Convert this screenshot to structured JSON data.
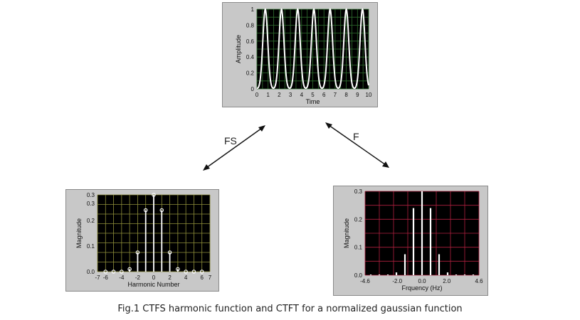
{
  "colors": {
    "panel_bg": "#c8c8c8",
    "plot_bg": "#000000",
    "grid_top": "#2f6e2f",
    "grid_left": "#8f8f3a",
    "grid_right": "#b0203f",
    "trace": "#ffffff"
  },
  "arrows": {
    "left_label": "FS",
    "right_label": "F"
  },
  "caption": "Fig.1 CTFS harmonic function and CTFT for a normalized gaussian function",
  "chart_data": [
    {
      "id": "time",
      "type": "line",
      "title": "",
      "xlabel": "Time",
      "ylabel": "Amplitude",
      "xlim": [
        0,
        10
      ],
      "ylim": [
        0,
        1
      ],
      "xticks": [
        "0",
        "1",
        "2",
        "3",
        "4",
        "5",
        "6",
        "7",
        "8",
        "9",
        "10"
      ],
      "yticks": [
        "0",
        "0.2",
        "0.4",
        "0.6",
        "0.8",
        "1"
      ],
      "grid": true,
      "period": 1.45,
      "peak_offset": 0.75,
      "sigma": 0.22
    },
    {
      "id": "harmonics",
      "type": "stem",
      "title": "",
      "xlabel": "Harmonic Number",
      "ylabel": "Magnitude",
      "xlim": [
        -7,
        7
      ],
      "ylim": [
        0,
        0.3
      ],
      "xticks": [
        "-7",
        "-6",
        "-4",
        "-2",
        "0",
        "2",
        "4",
        "6",
        "7"
      ],
      "yticks": [
        "0.0",
        "0.1",
        "0.2",
        "0.3",
        "0.3"
      ],
      "grid": true,
      "x": [
        -6,
        -5,
        -4,
        -3,
        -2,
        -1,
        0,
        1,
        2,
        3,
        4,
        5,
        6
      ],
      "y": [
        0.0,
        0.0,
        0.0,
        0.01,
        0.075,
        0.24,
        0.3,
        0.24,
        0.075,
        0.01,
        0.0,
        0.0,
        0.0
      ]
    },
    {
      "id": "spectrum",
      "type": "bar",
      "title": "",
      "xlabel": "Frquency (Hz)",
      "ylabel": "Magnitude",
      "xlim": [
        -4.6,
        4.6
      ],
      "ylim": [
        0,
        0.3
      ],
      "xticks": [
        "-4.6",
        "-2.0",
        "0.0",
        "2.0",
        "4.6"
      ],
      "yticks": [
        "0.0",
        "0.1",
        "0.2",
        "0.3"
      ],
      "grid": true,
      "x": [
        -4.14,
        -3.45,
        -2.76,
        -2.07,
        -1.38,
        -0.69,
        0,
        0.69,
        1.38,
        2.07,
        2.76,
        3.45,
        4.14
      ],
      "y": [
        0.0,
        0.0,
        0.0,
        0.01,
        0.075,
        0.24,
        0.3,
        0.24,
        0.075,
        0.01,
        0.0,
        0.0,
        0.0
      ]
    }
  ]
}
